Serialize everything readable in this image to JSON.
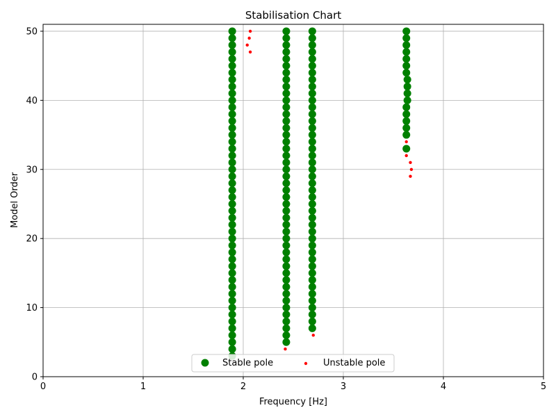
{
  "chart_data": {
    "type": "scatter",
    "title": "Stabilisation Chart",
    "xlabel": "Frequency [Hz]",
    "ylabel": "Model Order",
    "xlim": [
      0,
      5
    ],
    "ylim": [
      0,
      51
    ],
    "xticks": [
      "0",
      "1",
      "2",
      "3",
      "4",
      "5"
    ],
    "yticks": [
      "0",
      "10",
      "20",
      "30",
      "40",
      "50"
    ],
    "grid": true,
    "legend_position": "bottom-center",
    "series": [
      {
        "name": "Stable pole",
        "color": "#008000",
        "marker": "large-circle",
        "points": [
          [
            1.89,
            3
          ],
          [
            1.89,
            4
          ],
          [
            1.89,
            5
          ],
          [
            1.89,
            6
          ],
          [
            1.89,
            7
          ],
          [
            1.89,
            8
          ],
          [
            1.89,
            9
          ],
          [
            1.89,
            10
          ],
          [
            1.89,
            11
          ],
          [
            1.89,
            12
          ],
          [
            1.89,
            13
          ],
          [
            1.89,
            14
          ],
          [
            1.89,
            15
          ],
          [
            1.89,
            16
          ],
          [
            1.89,
            17
          ],
          [
            1.89,
            18
          ],
          [
            1.89,
            19
          ],
          [
            1.89,
            20
          ],
          [
            1.89,
            21
          ],
          [
            1.89,
            22
          ],
          [
            1.89,
            23
          ],
          [
            1.89,
            24
          ],
          [
            1.89,
            25
          ],
          [
            1.89,
            26
          ],
          [
            1.89,
            27
          ],
          [
            1.89,
            28
          ],
          [
            1.89,
            29
          ],
          [
            1.89,
            30
          ],
          [
            1.89,
            31
          ],
          [
            1.89,
            32
          ],
          [
            1.89,
            33
          ],
          [
            1.89,
            34
          ],
          [
            1.89,
            35
          ],
          [
            1.89,
            36
          ],
          [
            1.89,
            37
          ],
          [
            1.89,
            38
          ],
          [
            1.89,
            39
          ],
          [
            1.89,
            40
          ],
          [
            1.89,
            41
          ],
          [
            1.89,
            42
          ],
          [
            1.89,
            43
          ],
          [
            1.89,
            44
          ],
          [
            1.89,
            45
          ],
          [
            1.89,
            46
          ],
          [
            1.89,
            47
          ],
          [
            1.89,
            48
          ],
          [
            1.89,
            49
          ],
          [
            1.89,
            50
          ],
          [
            2.43,
            5
          ],
          [
            2.43,
            6
          ],
          [
            2.43,
            7
          ],
          [
            2.43,
            8
          ],
          [
            2.43,
            9
          ],
          [
            2.43,
            10
          ],
          [
            2.43,
            11
          ],
          [
            2.43,
            12
          ],
          [
            2.43,
            13
          ],
          [
            2.43,
            14
          ],
          [
            2.43,
            15
          ],
          [
            2.43,
            16
          ],
          [
            2.43,
            17
          ],
          [
            2.43,
            18
          ],
          [
            2.43,
            19
          ],
          [
            2.43,
            20
          ],
          [
            2.43,
            21
          ],
          [
            2.43,
            22
          ],
          [
            2.43,
            23
          ],
          [
            2.43,
            24
          ],
          [
            2.43,
            25
          ],
          [
            2.43,
            26
          ],
          [
            2.43,
            27
          ],
          [
            2.43,
            28
          ],
          [
            2.43,
            29
          ],
          [
            2.43,
            30
          ],
          [
            2.43,
            31
          ],
          [
            2.43,
            32
          ],
          [
            2.43,
            33
          ],
          [
            2.43,
            34
          ],
          [
            2.43,
            35
          ],
          [
            2.43,
            36
          ],
          [
            2.43,
            37
          ],
          [
            2.43,
            38
          ],
          [
            2.43,
            39
          ],
          [
            2.43,
            40
          ],
          [
            2.43,
            41
          ],
          [
            2.43,
            42
          ],
          [
            2.43,
            43
          ],
          [
            2.43,
            44
          ],
          [
            2.43,
            45
          ],
          [
            2.43,
            46
          ],
          [
            2.43,
            47
          ],
          [
            2.43,
            48
          ],
          [
            2.43,
            49
          ],
          [
            2.43,
            50
          ],
          [
            2.69,
            7
          ],
          [
            2.69,
            8
          ],
          [
            2.69,
            9
          ],
          [
            2.69,
            10
          ],
          [
            2.69,
            11
          ],
          [
            2.69,
            12
          ],
          [
            2.69,
            13
          ],
          [
            2.69,
            14
          ],
          [
            2.69,
            15
          ],
          [
            2.69,
            16
          ],
          [
            2.69,
            17
          ],
          [
            2.69,
            18
          ],
          [
            2.69,
            19
          ],
          [
            2.69,
            20
          ],
          [
            2.69,
            21
          ],
          [
            2.69,
            22
          ],
          [
            2.69,
            23
          ],
          [
            2.69,
            24
          ],
          [
            2.69,
            25
          ],
          [
            2.69,
            26
          ],
          [
            2.69,
            27
          ],
          [
            2.69,
            28
          ],
          [
            2.69,
            29
          ],
          [
            2.69,
            30
          ],
          [
            2.69,
            31
          ],
          [
            2.69,
            32
          ],
          [
            2.69,
            33
          ],
          [
            2.69,
            34
          ],
          [
            2.69,
            35
          ],
          [
            2.69,
            36
          ],
          [
            2.69,
            37
          ],
          [
            2.69,
            38
          ],
          [
            2.69,
            39
          ],
          [
            2.69,
            40
          ],
          [
            2.69,
            41
          ],
          [
            2.69,
            42
          ],
          [
            2.69,
            43
          ],
          [
            2.69,
            44
          ],
          [
            2.69,
            45
          ],
          [
            2.69,
            46
          ],
          [
            2.69,
            47
          ],
          [
            2.69,
            48
          ],
          [
            2.69,
            49
          ],
          [
            2.69,
            50
          ],
          [
            3.63,
            33
          ],
          [
            3.63,
            35
          ],
          [
            3.63,
            36
          ],
          [
            3.63,
            37
          ],
          [
            3.63,
            38
          ],
          [
            3.63,
            39
          ],
          [
            3.64,
            40
          ],
          [
            3.64,
            41
          ],
          [
            3.64,
            42
          ],
          [
            3.64,
            43
          ],
          [
            3.63,
            44
          ],
          [
            3.63,
            45
          ],
          [
            3.63,
            46
          ],
          [
            3.63,
            47
          ],
          [
            3.63,
            48
          ],
          [
            3.63,
            49
          ],
          [
            3.63,
            50
          ]
        ]
      },
      {
        "name": "Unstable pole",
        "color": "#ff0000",
        "marker": "small-circle",
        "points": [
          [
            2.07,
            50
          ],
          [
            2.06,
            49
          ],
          [
            2.04,
            48
          ],
          [
            2.07,
            47
          ],
          [
            2.42,
            4
          ],
          [
            2.7,
            6
          ],
          [
            3.63,
            34
          ],
          [
            3.63,
            32
          ],
          [
            3.67,
            31
          ],
          [
            3.68,
            30
          ],
          [
            3.67,
            29
          ]
        ]
      }
    ]
  }
}
